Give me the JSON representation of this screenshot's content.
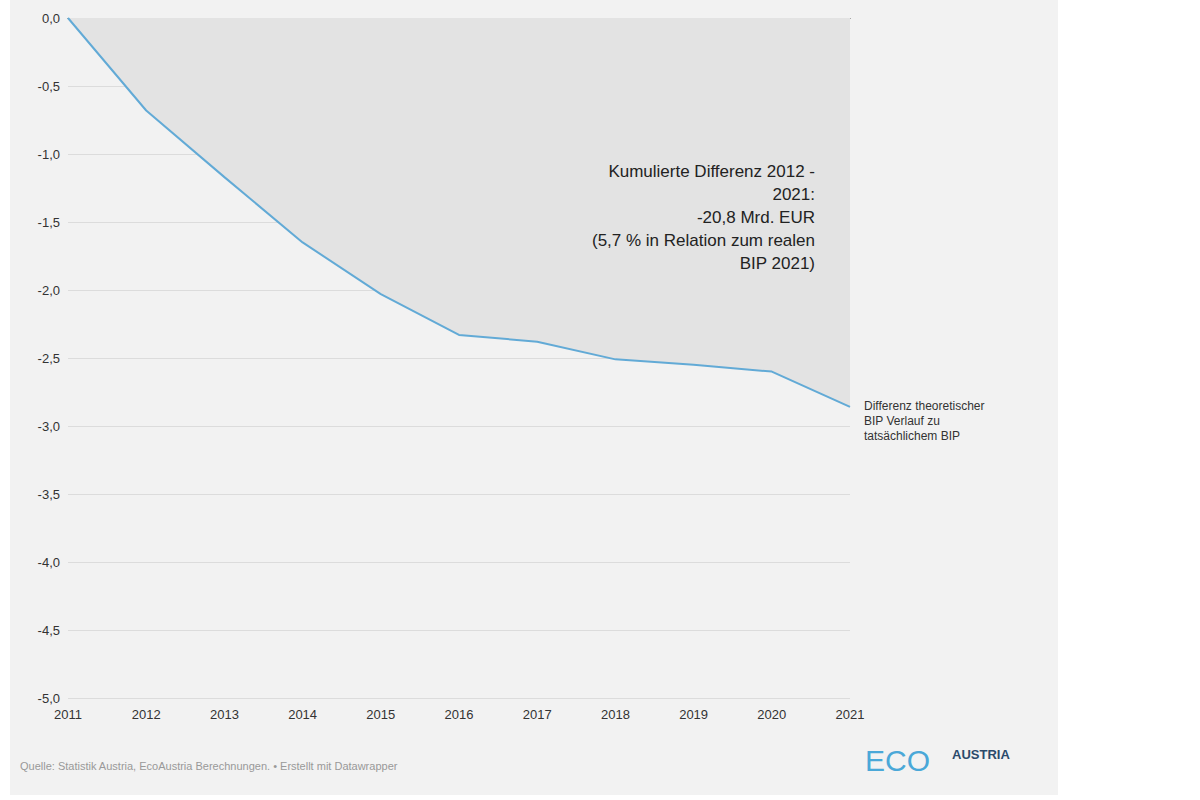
{
  "chart_data": {
    "type": "line",
    "categories": [
      "2011",
      "2012",
      "2013",
      "2014",
      "2015",
      "2016",
      "2017",
      "2018",
      "2019",
      "2020",
      "2021"
    ],
    "series": [
      {
        "name": "Differenz theoretischer\nBIP Verlauf zu\ntatsächlichem BIP",
        "color": "#62aad6",
        "values": [
          0,
          -0.68,
          -1.17,
          -1.65,
          -2.03,
          -2.33,
          -2.38,
          -2.51,
          -2.55,
          -2.6,
          -2.86
        ]
      }
    ],
    "ylim": [
      -5,
      0
    ],
    "yticks": [
      {
        "value": -5,
        "label": "-5,0"
      },
      {
        "value": -4.5,
        "label": "-4,5"
      },
      {
        "value": -4,
        "label": "-4,0"
      },
      {
        "value": -3.5,
        "label": "-3,5"
      },
      {
        "value": -3,
        "label": "-3,0"
      },
      {
        "value": -2.5,
        "label": "-2,5"
      },
      {
        "value": -2,
        "label": "-2,0"
      },
      {
        "value": -1.5,
        "label": "-1,5"
      },
      {
        "value": -1,
        "label": "-1,0"
      },
      {
        "value": -0.5,
        "label": "-0,5"
      },
      {
        "value": 0,
        "label": "0,0"
      }
    ],
    "grid": true,
    "annotations": [
      "Kumulierte Differenz 2012 -\n2021:\n-20,8 Mrd. EUR\n(5,7 % in Relation zum realen\nBIP 2021)"
    ],
    "source": "Quelle: Statistik Austria, EcoAustria Berechnungen. • Erstellt mit Datawrapper",
    "logo": [
      "ECO",
      "AUSTRIA"
    ]
  }
}
